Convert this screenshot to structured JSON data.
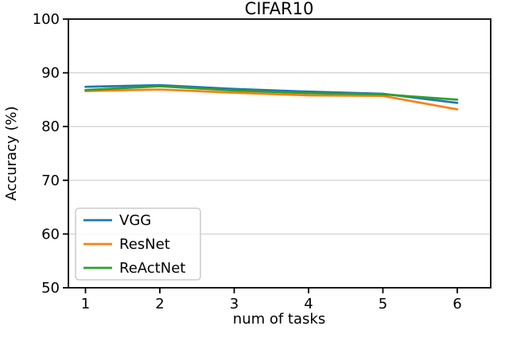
{
  "chart_data": {
    "type": "line",
    "title": "CIFAR10",
    "xlabel": "num of tasks",
    "ylabel": "Accuracy (%)",
    "x": [
      1,
      2,
      3,
      4,
      5,
      6
    ],
    "series": [
      {
        "name": "VGG",
        "color": "#1f77b4",
        "values": [
          87.4,
          87.7,
          87.0,
          86.5,
          86.1,
          84.4
        ]
      },
      {
        "name": "ResNet",
        "color": "#ff7f0e",
        "values": [
          86.6,
          86.9,
          86.3,
          85.8,
          85.7,
          83.2
        ]
      },
      {
        "name": "ReActNet",
        "color": "#2ca02c",
        "values": [
          86.8,
          87.5,
          86.7,
          86.2,
          86.0,
          85.0
        ]
      }
    ],
    "xticks": [
      1,
      2,
      3,
      4,
      5,
      6
    ],
    "yticks": [
      50,
      60,
      70,
      80,
      90,
      100
    ],
    "xlim": [
      0.77,
      6.45
    ],
    "ylim": [
      50,
      100
    ],
    "grid": "horizontal",
    "legend_position": "lower left"
  },
  "colors": {
    "grid": "#d4d4d4",
    "spine": "#000000",
    "legend_border": "#cccccc",
    "legend_bg": "#ffffff"
  }
}
